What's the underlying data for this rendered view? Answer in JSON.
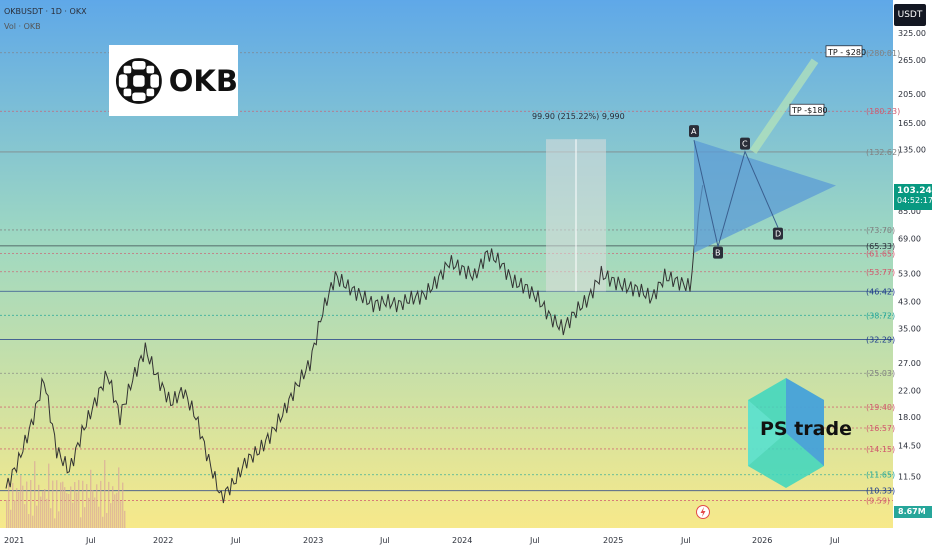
{
  "header": {
    "symbol": "OKBUSDT · 1D · OKX",
    "volume_label": "Vol · OKB"
  },
  "logos": {
    "okb_text": "OKB",
    "ps_text": "PS trade"
  },
  "axis": {
    "currency": "USDT",
    "current_price": "103.24",
    "countdown": "04:52:17",
    "volume_badge": "8.67M"
  },
  "colors": {
    "bg_top": "#5fa8e8",
    "bg_mid": "#9ed8c2",
    "bg_bottom": "#f7e98a",
    "triangle": "#5b9bd5",
    "measure_box": "#dcdcdc",
    "candle": "#333333",
    "volume": "#d9a89a"
  },
  "chart_data": {
    "type": "line",
    "title": "",
    "xlabel": "",
    "ylabel": "",
    "y_scale": "log",
    "ylim": [
      8.6,
      345
    ],
    "x_ticks": [
      "2021",
      "Jul",
      "2022",
      "Jul",
      "2023",
      "Jul",
      "2024",
      "Jul",
      "2025",
      "Jul",
      "2026",
      "Jul"
    ],
    "y_ticks": [
      "325.00",
      "265.00",
      "205.00",
      "165.00",
      "135.00",
      "103.24",
      "85.00",
      "69.00",
      "53.00",
      "43.00",
      "35.00",
      "27.00",
      "22.00",
      "18.00",
      "14.50",
      "11.50"
    ],
    "level_labels": [
      {
        "label": "(280.01)",
        "value": 280.01,
        "color": "#808080",
        "style": "dotted"
      },
      {
        "label": "(180.23)",
        "value": 180.23,
        "color": "#d05a6e",
        "style": "dotted"
      },
      {
        "label": "(132.62)",
        "value": 132.62,
        "color": "#808080",
        "style": "solid"
      },
      {
        "label": "(73.70)",
        "value": 73.7,
        "color": "#808080",
        "style": "dotted"
      },
      {
        "label": "(65.33)",
        "value": 65.33,
        "color": "#2a2e39",
        "style": "solid"
      },
      {
        "label": "(61.65)",
        "value": 61.65,
        "color": "#d05a6e",
        "style": "dotted"
      },
      {
        "label": "(53.77)",
        "value": 53.77,
        "color": "#d05a6e",
        "style": "dotted"
      },
      {
        "label": "(46.42)",
        "value": 46.42,
        "color": "#1e3a8a",
        "style": "solid"
      },
      {
        "label": "(38.72)",
        "value": 38.72,
        "color": "#26a69a",
        "style": "dotted"
      },
      {
        "label": "(32.29)",
        "value": 32.29,
        "color": "#1e3a8a",
        "style": "solid"
      },
      {
        "label": "(25.03)",
        "value": 25.03,
        "color": "#808080",
        "style": "dotted"
      },
      {
        "label": "(19.40)",
        "value": 19.4,
        "color": "#d05a6e",
        "style": "dotted"
      },
      {
        "label": "(16.57)",
        "value": 16.57,
        "color": "#d05a6e",
        "style": "dotted"
      },
      {
        "label": "(14.15)",
        "value": 14.15,
        "color": "#d05a6e",
        "style": "dotted"
      },
      {
        "label": "(11.65)",
        "value": 11.65,
        "color": "#26a69a",
        "style": "dotted"
      },
      {
        "label": "(10.33)",
        "value": 10.33,
        "color": "#1e3a8a",
        "style": "solid"
      },
      {
        "label": "(9.59)",
        "value": 9.59,
        "color": "#d05a6e",
        "style": "dotted"
      }
    ],
    "series": [
      {
        "x": [
          "2021-01",
          "2021-02",
          "2021-03",
          "2021-04",
          "2021-05",
          "2021-06",
          "2021-07",
          "2021-08",
          "2021-09",
          "2021-10",
          "2021-11",
          "2021-12",
          "2022-01",
          "2022-02",
          "2022-03",
          "2022-04",
          "2022-05",
          "2022-06",
          "2022-07",
          "2022-08",
          "2022-09",
          "2022-10",
          "2022-11",
          "2022-12",
          "2023-01",
          "2023-02",
          "2023-03",
          "2023-04",
          "2023-05",
          "2023-06",
          "2023-07",
          "2023-08",
          "2023-09",
          "2023-10",
          "2023-11",
          "2023-12",
          "2024-01",
          "2024-02",
          "2024-03",
          "2024-04",
          "2024-05",
          "2024-06",
          "2024-07",
          "2024-08",
          "2024-09",
          "2024-10",
          "2024-11",
          "2024-12",
          "2025-01",
          "2025-02",
          "2025-03",
          "2025-04",
          "2025-05",
          "2025-06",
          "2025-07",
          "2025-08"
        ],
        "values": [
          10.5,
          13,
          17,
          24,
          14,
          12,
          16,
          20,
          25,
          18,
          24,
          30,
          24,
          20,
          22,
          18,
          13,
          9.8,
          11,
          13,
          14,
          16,
          19,
          23,
          27,
          40,
          52,
          48,
          45,
          42,
          43,
          42,
          44,
          45,
          50,
          58,
          55,
          52,
          62,
          58,
          50,
          48,
          44,
          38,
          35,
          40,
          44,
          53,
          50,
          48,
          47,
          44,
          52,
          50,
          48,
          103.24
        ]
      }
    ],
    "annotations": {
      "measure_label": "99.90 (215.22%) 9,990",
      "measure_from": 46.42,
      "measure_to": 146,
      "points": [
        {
          "label": "A",
          "x": "2025-07",
          "y": 145
        },
        {
          "label": "B",
          "x": "2025-08",
          "y": 65
        },
        {
          "label": "C",
          "x": "2025-11",
          "y": 133
        },
        {
          "label": "D",
          "x": "2026-01",
          "y": 75
        }
      ],
      "targets": [
        {
          "label": "TP -$180",
          "value": 180.23
        },
        {
          "label": "TP - $280",
          "value": 280.01
        }
      ]
    }
  }
}
